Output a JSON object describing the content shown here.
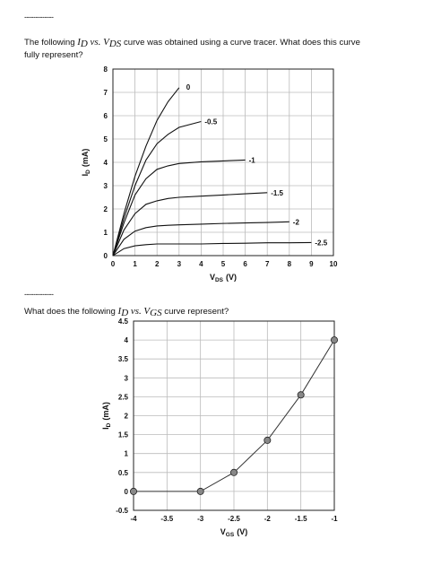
{
  "q1": {
    "separator": "-------------",
    "before": "The following",
    "var1": "I",
    "sub1": "D",
    "vs": "vs.",
    "var2": "V",
    "sub2": "DS",
    "after": "curve was obtained using a curve tracer. What does this curve",
    "line2": "fully represent?"
  },
  "q2": {
    "separator": "-------------",
    "before": "What does the following",
    "var1": "I",
    "sub1": "D",
    "vs": "vs.",
    "var2": "V",
    "sub2": "GS",
    "after": "curve represent?"
  },
  "chart_data": [
    {
      "type": "line",
      "xlabel": "V",
      "xlabel_sub": "DS",
      "xlabel_unit": "(V)",
      "ylabel": "I",
      "ylabel_sub": "D",
      "ylabel_unit": "(mA)",
      "x": [
        0,
        0.5,
        1,
        1.5,
        2,
        2.5,
        3,
        4,
        5,
        6,
        7,
        8,
        9
      ],
      "series": [
        {
          "name": "0",
          "color": "#111111",
          "values": [
            0,
            1.8,
            3.4,
            4.7,
            5.8,
            6.6,
            7.2,
            null,
            null,
            null,
            null,
            null,
            null
          ]
        },
        {
          "name": "-0.5",
          "color": "#111111",
          "values": [
            0,
            1.6,
            3.0,
            4.1,
            4.8,
            5.2,
            5.5,
            5.75,
            null,
            null,
            null,
            null,
            null
          ]
        },
        {
          "name": "-1",
          "color": "#111111",
          "values": [
            0,
            1.4,
            2.6,
            3.3,
            3.7,
            3.85,
            3.95,
            4.02,
            4.06,
            4.1,
            null,
            null,
            null
          ]
        },
        {
          "name": "-1.5",
          "color": "#111111",
          "values": [
            0,
            1.1,
            1.8,
            2.2,
            2.35,
            2.45,
            2.5,
            2.55,
            2.6,
            2.65,
            2.7,
            null,
            null
          ]
        },
        {
          "name": "-2",
          "color": "#111111",
          "values": [
            0,
            0.7,
            1.05,
            1.2,
            1.27,
            1.3,
            1.32,
            1.35,
            1.38,
            1.4,
            1.42,
            1.45,
            null
          ]
        },
        {
          "name": "-2.5",
          "color": "#111111",
          "values": [
            0,
            0.3,
            0.42,
            0.47,
            0.5,
            0.5,
            0.5,
            0.5,
            0.52,
            0.53,
            0.55,
            0.55,
            0.56
          ]
        }
      ],
      "xlim": [
        0,
        10
      ],
      "ylim": [
        0,
        8
      ],
      "xticks": [
        0,
        1,
        2,
        3,
        4,
        5,
        6,
        7,
        8,
        9,
        10
      ],
      "yticks": [
        0,
        1,
        2,
        3,
        4,
        5,
        6,
        7,
        8
      ],
      "grid": true
    },
    {
      "type": "line",
      "xlabel": "V",
      "xlabel_sub": "GS",
      "xlabel_unit": "(V)",
      "ylabel": "I",
      "ylabel_sub": "D",
      "ylabel_unit": "(mA)",
      "x": [
        -4,
        -3,
        -2.5,
        -2,
        -1.5,
        -1
      ],
      "values": [
        0,
        0,
        0.5,
        1.35,
        2.55,
        4
      ],
      "color": "#333333",
      "marker_color": "#888888",
      "xlim": [
        -4,
        -1
      ],
      "ylim": [
        -0.5,
        4.5
      ],
      "xticks": [
        -4,
        -3.5,
        -3,
        -2.5,
        -2,
        -1.5,
        -1
      ],
      "yticks": [
        -0.5,
        0,
        0.5,
        1,
        1.5,
        2,
        2.5,
        3,
        3.5,
        4,
        4.5
      ],
      "grid": true
    }
  ]
}
